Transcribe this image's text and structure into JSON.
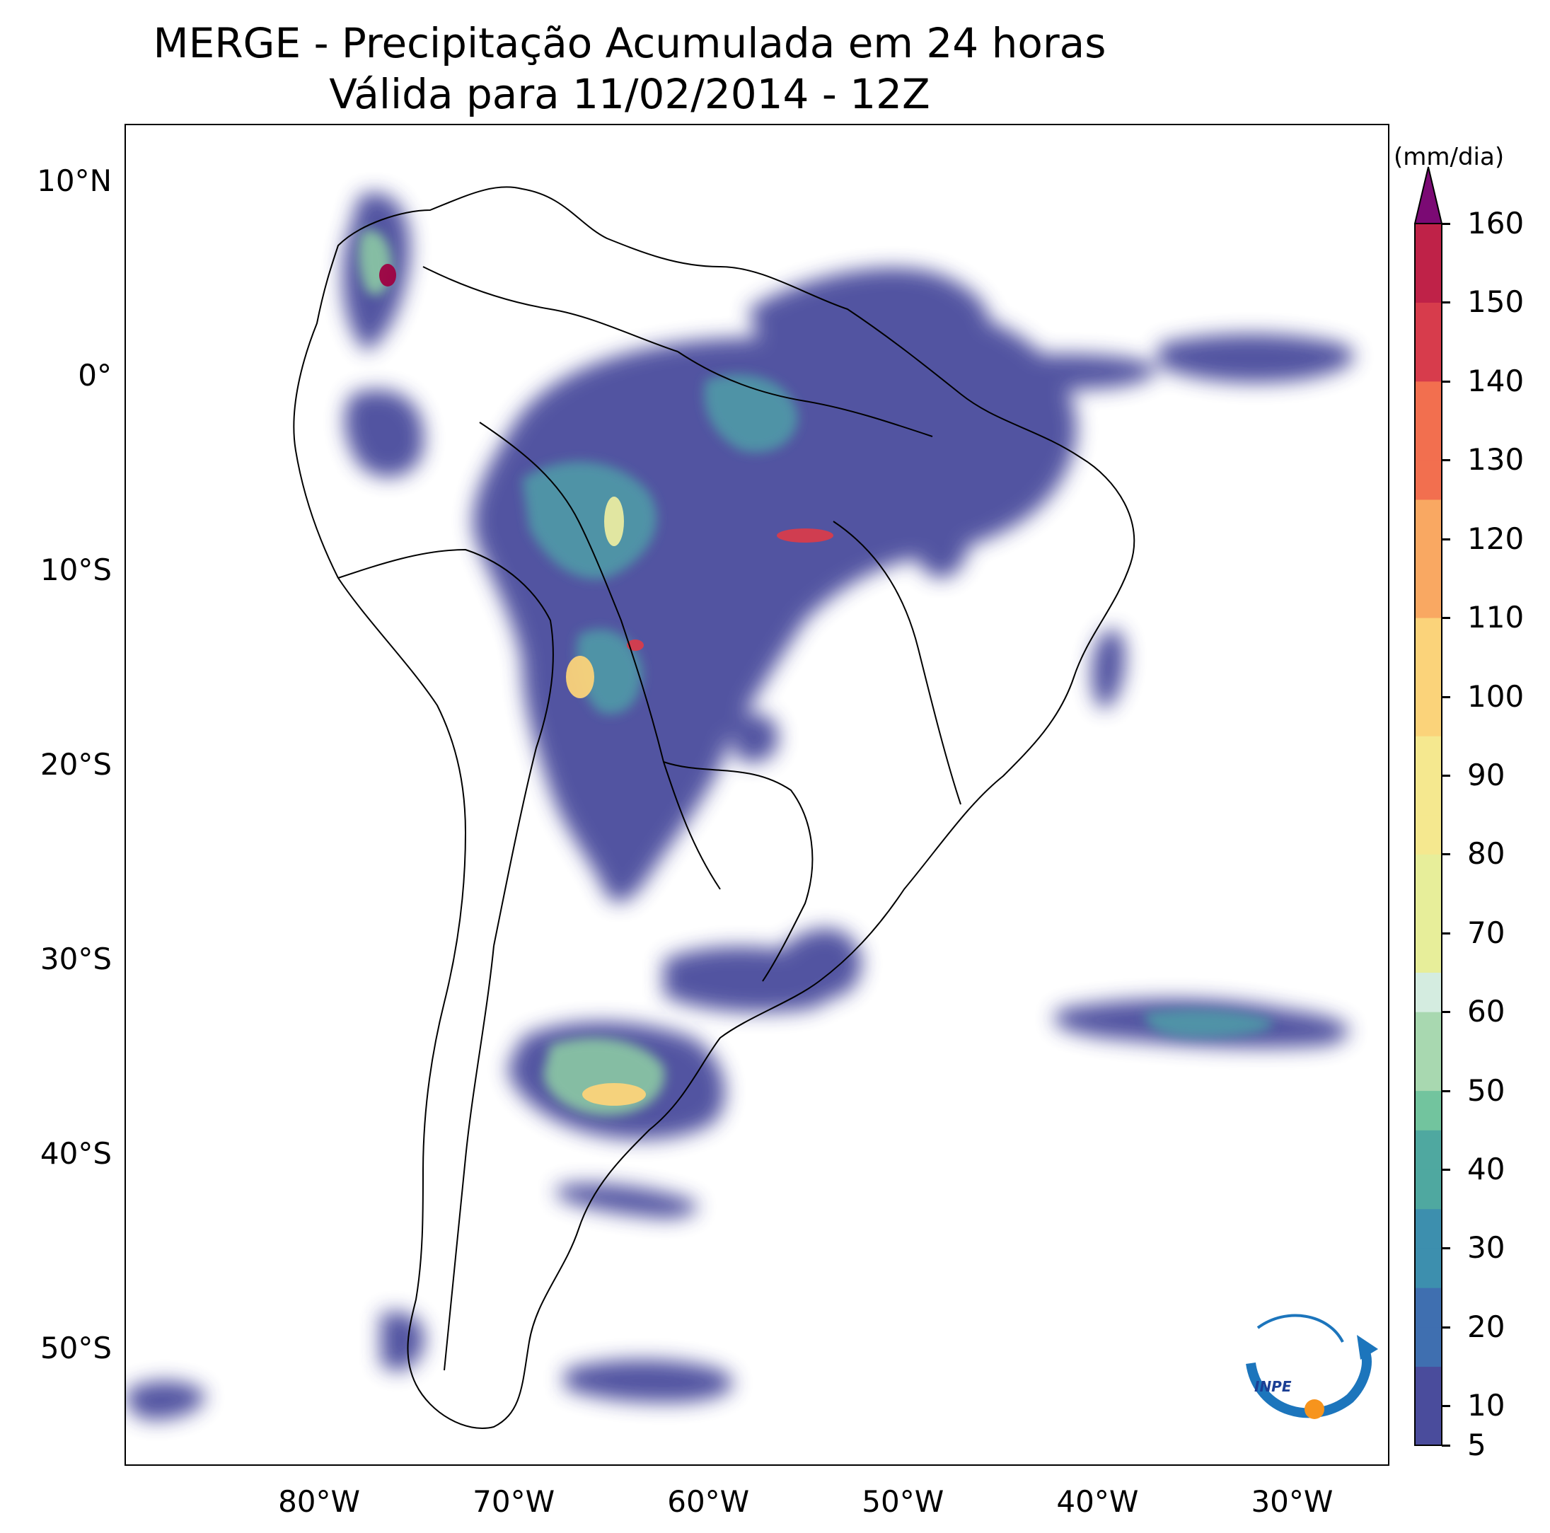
{
  "title": {
    "line1": "MERGE - Precipitação Acumulada em 24 horas",
    "line2": "Válida para 11/02/2014 - 12Z"
  },
  "map": {
    "lat_ticks": [
      {
        "value": 10,
        "label": "10°N"
      },
      {
        "value": 0,
        "label": "0°"
      },
      {
        "value": -10,
        "label": "10°S"
      },
      {
        "value": -20,
        "label": "20°S"
      },
      {
        "value": -30,
        "label": "30°S"
      },
      {
        "value": -40,
        "label": "40°S"
      },
      {
        "value": -50,
        "label": "50°S"
      }
    ],
    "lon_ticks": [
      {
        "value": -80,
        "label": "80°W"
      },
      {
        "value": -70,
        "label": "70°W"
      },
      {
        "value": -60,
        "label": "60°W"
      },
      {
        "value": -50,
        "label": "50°W"
      },
      {
        "value": -40,
        "label": "40°W"
      },
      {
        "value": -30,
        "label": "30°W"
      }
    ],
    "extent": {
      "lon_min": -90,
      "lon_max": -25,
      "lat_min": -56,
      "lat_max": 13
    },
    "precip_color_ramp": [
      "#4a4c9c",
      "#3f6fb0",
      "#4f9ea8",
      "#8fd0a4",
      "#e9eaa0",
      "#fbd37a",
      "#d73c4c",
      "#9e0142"
    ]
  },
  "colorbar": {
    "unit": "(mm/dia)",
    "labels": [
      "5",
      "10",
      "20",
      "30",
      "40",
      "50",
      "60",
      "70",
      "80",
      "90",
      "100",
      "110",
      "120",
      "130",
      "140",
      "150",
      "160"
    ],
    "label_values": [
      5,
      10,
      20,
      30,
      40,
      50,
      60,
      70,
      80,
      90,
      100,
      110,
      120,
      130,
      140,
      150,
      160
    ],
    "min": 5,
    "max": 160,
    "extend": "max"
  },
  "logo": {
    "icon": "inpe-logo",
    "text": "INPE"
  }
}
